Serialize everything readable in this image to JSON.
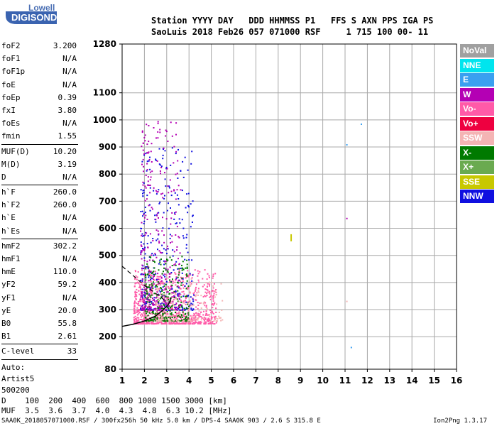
{
  "logo": {
    "line1": "Lowell",
    "line2": "DIGISONDE"
  },
  "header": {
    "row1": "Station YYYY DAY   DDD HHMMSS P1   FFS S AXN PPS IGA PS",
    "row2": "SaoLuis 2018 Feb26 057 071000 RSF     1 715 100 00- 11"
  },
  "params": [
    [
      {
        "k": "foF2",
        "v": "3.200"
      },
      {
        "k": "foF1",
        "v": "N/A"
      },
      {
        "k": "foF1p",
        "v": "N/A"
      },
      {
        "k": "foE",
        "v": "N/A"
      },
      {
        "k": "foEp",
        "v": "0.39"
      },
      {
        "k": "fxI",
        "v": "3.80"
      },
      {
        "k": "foEs",
        "v": "N/A"
      },
      {
        "k": "fmin",
        "v": "1.55"
      }
    ],
    [
      {
        "k": "MUF(D)",
        "v": "10.20"
      },
      {
        "k": "M(D)",
        "v": "3.19"
      },
      {
        "k": "D",
        "v": "N/A"
      }
    ],
    [
      {
        "k": "h`F",
        "v": "260.0"
      },
      {
        "k": "h`F2",
        "v": "260.0"
      },
      {
        "k": "h`E",
        "v": "N/A"
      },
      {
        "k": "h`Es",
        "v": "N/A"
      }
    ],
    [
      {
        "k": "hmF2",
        "v": "302.2"
      },
      {
        "k": "hmF1",
        "v": "N/A"
      },
      {
        "k": "hmE",
        "v": "110.0"
      },
      {
        "k": "yF2",
        "v": "59.2"
      },
      {
        "k": "yF1",
        "v": "N/A"
      },
      {
        "k": "yE",
        "v": "20.0"
      },
      {
        "k": "B0",
        "v": "55.8"
      },
      {
        "k": "B1",
        "v": "2.61"
      }
    ],
    [
      {
        "k": "C-level",
        "v": "33"
      }
    ]
  ],
  "auto": {
    "line1": "Auto:",
    "line2": "Artist5",
    "line3": "500200"
  },
  "legend": [
    {
      "label": "NoVal",
      "color": "#a0a0a0"
    },
    {
      "label": "NNE",
      "color": "#00e5ee"
    },
    {
      "label": "E",
      "color": "#3aa0f0"
    },
    {
      "label": "W",
      "color": "#b400b4"
    },
    {
      "label": "Vo-",
      "color": "#ff5aa8"
    },
    {
      "label": "Vo+",
      "color": "#ee0040"
    },
    {
      "label": "SSW",
      "color": "#f4b4b4"
    },
    {
      "label": "X-",
      "color": "#007a00"
    },
    {
      "label": "X+",
      "color": "#6aaa50"
    },
    {
      "label": "SSE",
      "color": "#c8c800"
    },
    {
      "label": "NNW",
      "color": "#1010e0"
    }
  ],
  "bottom": {
    "row1": "D    100  200  400  600  800 1000 1500 3000 [km]",
    "row2": "MUF  3.5  3.6  3.7  4.0  4.3  4.8  6.3 10.2 [MHz]"
  },
  "footer": {
    "left": "SAA0K_2018057071000.RSF / 300fx256h 50 kHz 5.0 km / DPS-4 SAA0K 903 / 2.6 S 315.8 E",
    "right": "Ion2Png 1.3.17"
  },
  "chart_data": {
    "type": "scatter",
    "x_ticks": [
      1,
      2,
      3,
      4,
      5,
      6,
      7,
      8,
      9,
      10,
      11,
      12,
      13,
      14,
      15,
      16
    ],
    "y_ticks": [
      80,
      200,
      300,
      400,
      500,
      600,
      700,
      800,
      900,
      1000,
      1100,
      1280
    ],
    "xlim": [
      1,
      16
    ],
    "ylim": [
      80,
      1280
    ],
    "grid": true,
    "legend_position": "right",
    "echo_clusters": [
      {
        "series": "Vo-",
        "x_range": [
          1.5,
          5.2
        ],
        "y_range": [
          250,
          450
        ],
        "density": "high"
      },
      {
        "series": "NNW",
        "x_range": [
          1.8,
          4.2
        ],
        "y_range": [
          300,
          900
        ],
        "density": "medium"
      },
      {
        "series": "X-",
        "x_range": [
          2.0,
          4.0
        ],
        "y_range": [
          260,
          500
        ],
        "density": "medium"
      },
      {
        "series": "W",
        "x_range": [
          1.8,
          3.6
        ],
        "y_range": [
          300,
          1000
        ],
        "density": "medium"
      },
      {
        "series": "SSW",
        "x_range": [
          2.5,
          5.5
        ],
        "y_range": [
          260,
          420
        ],
        "density": "low"
      }
    ],
    "isolated_points": [
      {
        "x": 8.55,
        "y": 565,
        "series": "SSE"
      },
      {
        "x": 11.05,
        "y": 908,
        "series": "E"
      },
      {
        "x": 11.7,
        "y": 984,
        "series": "E"
      },
      {
        "x": 11.05,
        "y": 636,
        "series": "W"
      },
      {
        "x": 11.05,
        "y": 330,
        "series": "SSW"
      },
      {
        "x": 11.25,
        "y": 160,
        "series": "E"
      }
    ],
    "profile_curve": [
      [
        1,
        238
      ],
      [
        1.5,
        246
      ],
      [
        2,
        258
      ],
      [
        2.5,
        276
      ],
      [
        2.8,
        296
      ],
      [
        3.0,
        312
      ],
      [
        3.15,
        328
      ],
      [
        3.2,
        345
      ]
    ],
    "dashed_curve": [
      [
        1,
        460
      ],
      [
        1.5,
        425
      ],
      [
        2,
        390
      ],
      [
        2.5,
        360
      ],
      [
        2.9,
        335
      ]
    ]
  }
}
